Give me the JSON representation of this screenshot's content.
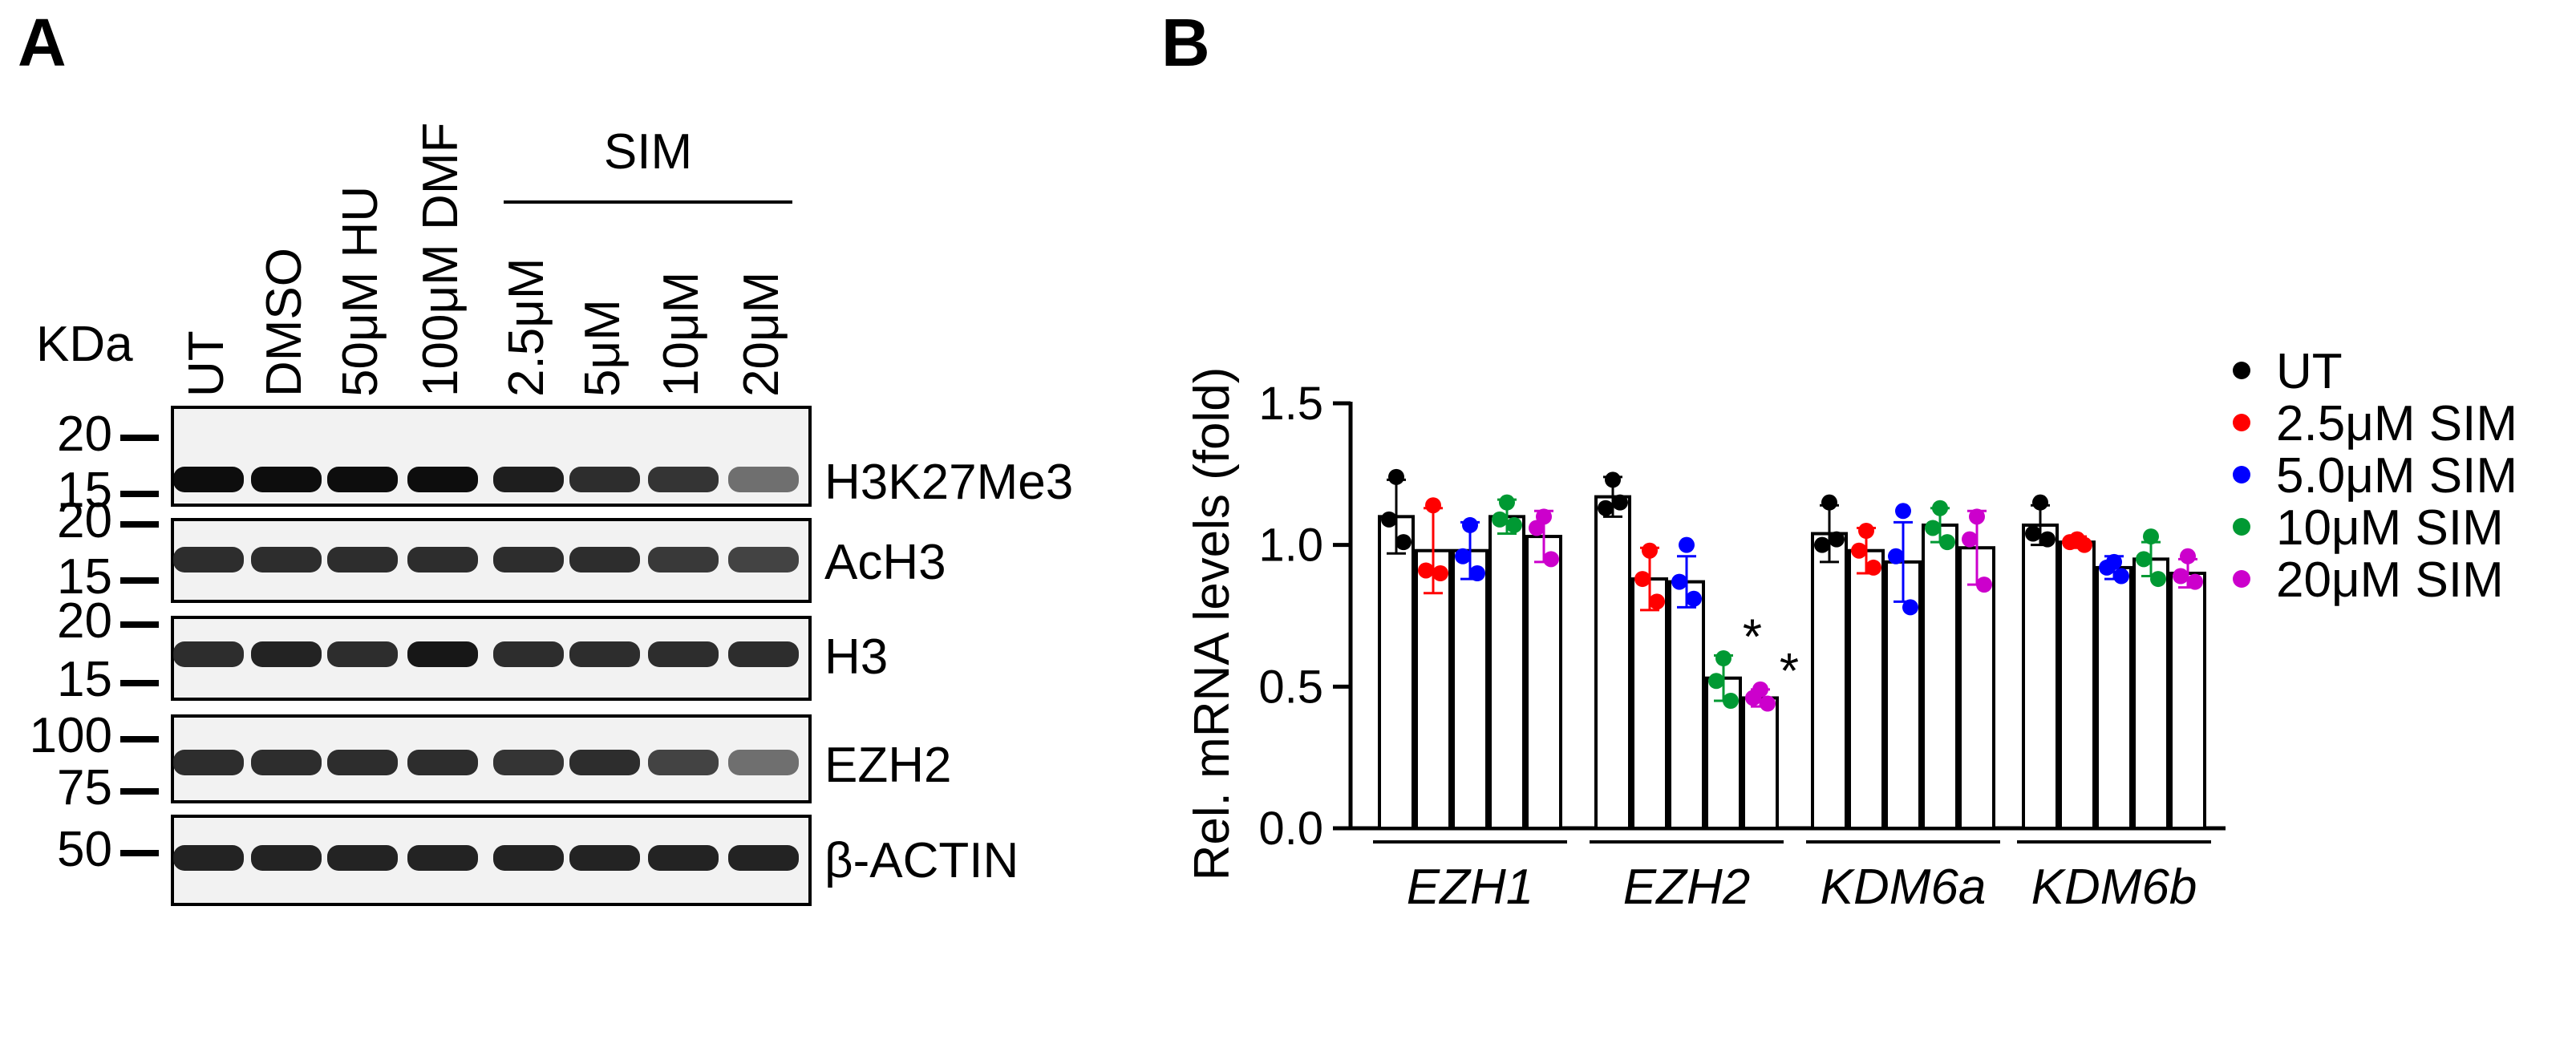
{
  "panel_a": {
    "label": "A",
    "kda_label": "KDa",
    "sim_header": "SIM",
    "lanes": [
      "UT",
      "DMSO",
      "50μM HU",
      "100μM DMF",
      "2.5μM",
      "5μM",
      "10μM",
      "20μM"
    ],
    "blots": [
      {
        "name": "H3K27Me3",
        "markers": [
          "20",
          "15"
        ],
        "intensity": [
          1.0,
          1.0,
          1.0,
          1.0,
          0.92,
          0.85,
          0.82,
          0.55
        ]
      },
      {
        "name": "AcH3",
        "markers": [
          "20",
          "15"
        ],
        "intensity": [
          0.85,
          0.85,
          0.85,
          0.85,
          0.85,
          0.85,
          0.8,
          0.75
        ]
      },
      {
        "name": "H3",
        "markers": [
          "20",
          "15"
        ],
        "intensity": [
          0.85,
          0.9,
          0.85,
          0.95,
          0.85,
          0.85,
          0.85,
          0.85
        ]
      },
      {
        "name": "EZH2",
        "markers": [
          "100",
          "75"
        ],
        "intensity": [
          0.85,
          0.85,
          0.85,
          0.85,
          0.82,
          0.85,
          0.75,
          0.55
        ]
      },
      {
        "name": "β-ACTIN",
        "markers": [
          "50"
        ],
        "intensity": [
          0.9,
          0.9,
          0.9,
          0.9,
          0.9,
          0.9,
          0.9,
          0.9
        ]
      }
    ]
  },
  "panel_b": {
    "label": "B"
  },
  "chart_data": {
    "type": "bar",
    "title": "",
    "xlabel": "",
    "ylabel": "Rel. mRNA levels (fold)",
    "ylim": [
      0,
      1.5
    ],
    "yticks": [
      "0.0",
      "0.5",
      "1.0",
      "1.5"
    ],
    "categories": [
      "EZH1",
      "EZH2",
      "KDM6a",
      "KDM6b"
    ],
    "series": [
      {
        "name": "UT",
        "color": "#000000",
        "values": [
          1.1,
          1.17,
          1.04,
          1.07
        ],
        "errors": [
          0.13,
          0.07,
          0.1,
          0.07
        ],
        "points": [
          [
            1.24,
            1.09,
            1.01
          ],
          [
            1.23,
            1.13,
            1.15
          ],
          [
            1.15,
            1.0,
            1.02
          ],
          [
            1.15,
            1.04,
            1.02
          ]
        ]
      },
      {
        "name": "2.5μM SIM",
        "color": "#ff0000",
        "values": [
          0.98,
          0.88,
          0.98,
          1.01
        ],
        "errors": [
          0.15,
          0.11,
          0.08,
          0.02
        ],
        "points": [
          [
            1.14,
            0.91,
            0.9
          ],
          [
            0.98,
            0.88,
            0.8
          ],
          [
            1.05,
            0.98,
            0.92
          ],
          [
            1.02,
            1.01,
            1.0
          ]
        ]
      },
      {
        "name": "5.0μM SIM",
        "color": "#0000ff",
        "values": [
          0.98,
          0.87,
          0.94,
          0.92
        ],
        "errors": [
          0.1,
          0.09,
          0.14,
          0.04
        ],
        "points": [
          [
            1.07,
            0.96,
            0.9
          ],
          [
            1.0,
            0.87,
            0.81
          ],
          [
            1.12,
            0.96,
            0.78
          ],
          [
            0.94,
            0.92,
            0.89
          ]
        ]
      },
      {
        "name": "10μM SIM",
        "color": "#009933",
        "values": [
          1.1,
          0.53,
          1.07,
          0.95
        ],
        "errors": [
          0.06,
          0.08,
          0.06,
          0.06
        ],
        "points": [
          [
            1.15,
            1.09,
            1.07
          ],
          [
            0.6,
            0.52,
            0.45
          ],
          [
            1.13,
            1.06,
            1.01
          ],
          [
            1.03,
            0.95,
            0.88
          ]
        ]
      },
      {
        "name": "20μM SIM",
        "color": "#cc00cc",
        "values": [
          1.03,
          0.46,
          0.99,
          0.9
        ],
        "errors": [
          0.09,
          0.03,
          0.13,
          0.05
        ],
        "points": [
          [
            1.1,
            1.06,
            0.95
          ],
          [
            0.49,
            0.46,
            0.44
          ],
          [
            1.1,
            1.02,
            0.86
          ],
          [
            0.96,
            0.89,
            0.87
          ]
        ]
      }
    ],
    "significance": [
      {
        "category": "EZH2",
        "series": "10μM SIM",
        "mark": "*"
      },
      {
        "category": "EZH2",
        "series": "20μM SIM",
        "mark": "*"
      }
    ],
    "legend_position": "right"
  }
}
